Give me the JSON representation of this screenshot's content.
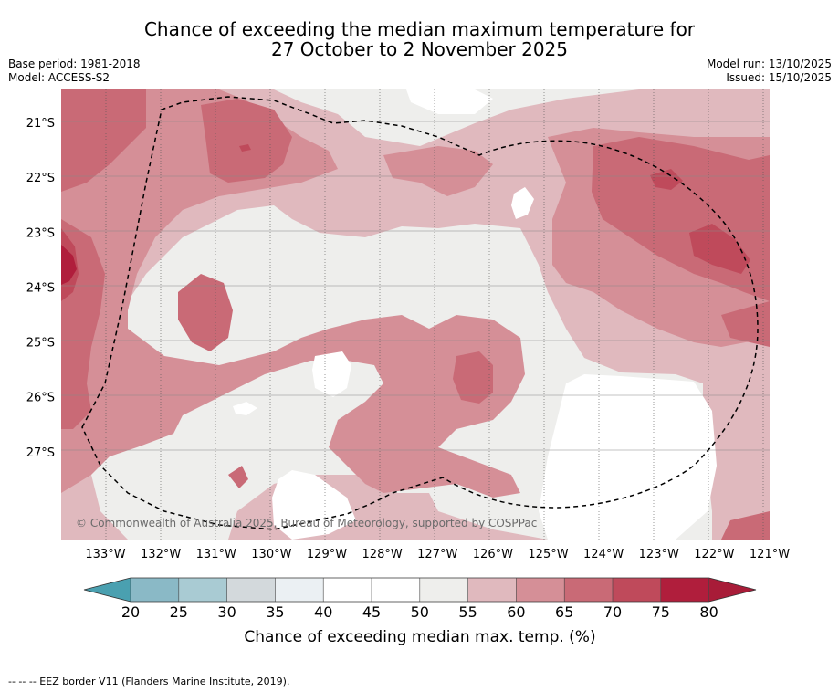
{
  "header": {
    "title_line1": "Chance of exceeding the median maximum temperature for",
    "title_line2": "27 October to 2 November 2025",
    "base_period": "Base period: 1981-2018",
    "model": "Model: ACCESS-S2",
    "model_run": "Model run: 13/10/2025",
    "issued": "Issued: 15/10/2025"
  },
  "map": {
    "copyright": "© Commonwealth of Australia 2025, Bureau of Meteorology, supported by COSPPac"
  },
  "colorbar": {
    "label": "Chance of exceeding median max. temp. (%)"
  },
  "footer": {
    "note": "-- -- -- EEZ border V11 (Flanders Marine Institute, 2019)."
  },
  "chart_data": {
    "type": "heatmap",
    "title": "Chance of exceeding the median maximum temperature for 27 October to 2 November 2025",
    "variable": "Chance of exceeding median max. temp. (%)",
    "x_ticks": [
      "133°W",
      "132°W",
      "131°W",
      "130°W",
      "129°W",
      "128°W",
      "127°W",
      "126°W",
      "125°W",
      "124°W",
      "123°W",
      "122°W",
      "121°W"
    ],
    "y_ticks": [
      "21°S",
      "22°S",
      "23°S",
      "24°S",
      "25°S",
      "26°S",
      "27°S"
    ],
    "xlim": [
      -133.8,
      -121.0
    ],
    "ylim": [
      -28.6,
      -20.4
    ],
    "colorbar_ticks": [
      20,
      25,
      30,
      35,
      40,
      45,
      50,
      55,
      60,
      65,
      70,
      75,
      80
    ],
    "colors": [
      "#6aacbd",
      "#8ab9c6",
      "#a9cbd3",
      "#d3d9dc",
      "#ebf0f3",
      "#ffffff",
      "#ffffff",
      "#eeeeec",
      "#e0b9be",
      "#d58f97",
      "#c96a76",
      "#bf4a5b",
      "#b01e3c"
    ],
    "under_color": "#4aa0b0",
    "over_color": "#a81c38",
    "bands": [
      {
        "range": [
          55,
          60
        ],
        "color": "#eeeeec"
      },
      {
        "range": [
          60,
          65
        ],
        "color": "#e0b9be"
      },
      {
        "range": [
          65,
          70
        ],
        "color": "#d58f97"
      },
      {
        "range": [
          70,
          75
        ],
        "color": "#c96a76"
      },
      {
        "range": [
          75,
          80
        ],
        "color": "#bf4a5b"
      },
      {
        "range": [
          80,
          100
        ],
        "color": "#b01e3c"
      }
    ]
  }
}
